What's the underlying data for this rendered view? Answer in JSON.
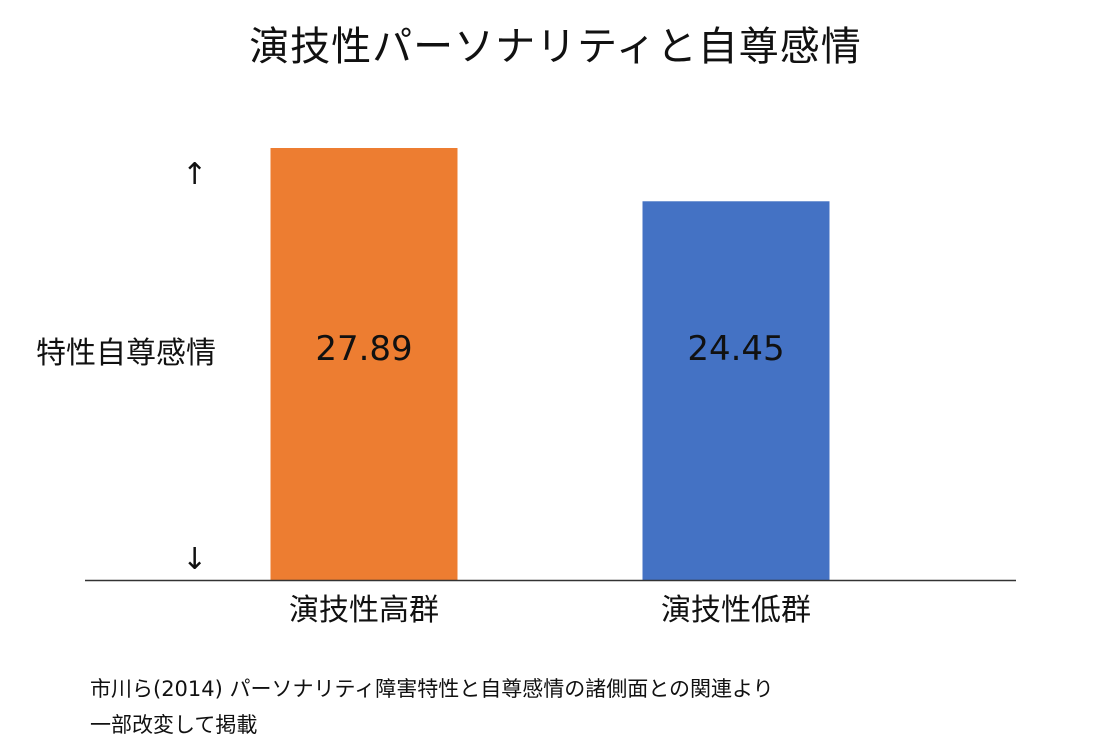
{
  "chart_data": {
    "type": "bar",
    "title": "演技性パーソナリティと自尊感情",
    "ylabel": "特性自尊感情",
    "xlabel": "",
    "categories": [
      "演技性高群",
      "演技性低群"
    ],
    "values": [
      27.89,
      24.45
    ],
    "value_labels": [
      "27.89",
      "24.45"
    ],
    "colors": [
      "#ED7D31",
      "#4472C4"
    ],
    "ylim": [
      0,
      28.5
    ],
    "grid": false,
    "legend": "none",
    "axis_arrows": [
      "↑",
      "↓"
    ]
  },
  "source": {
    "line1": "市川ら(2014) パーソナリティ障害特性と自尊感情の諸側面との関連より",
    "line2": "一部改変して掲載"
  }
}
